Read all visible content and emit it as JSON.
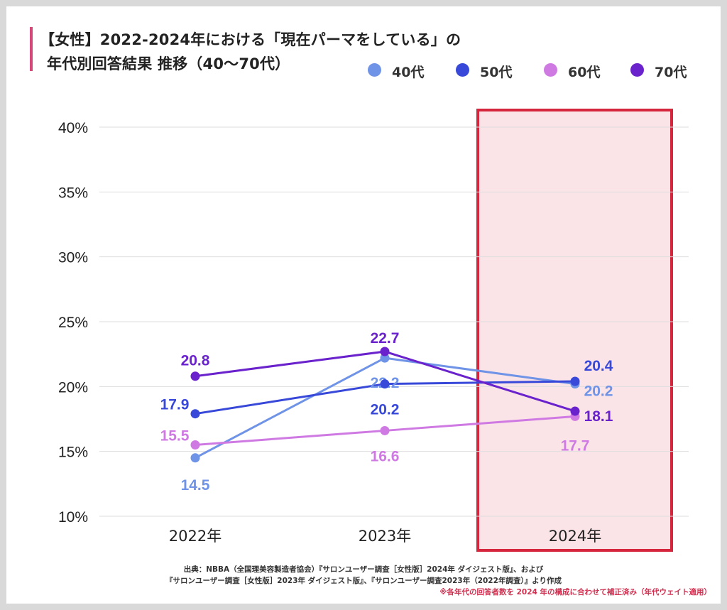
{
  "title": {
    "line1": "【女性】2022-2024年における「現在パーマをしている」の",
    "line2": "年代別回答結果 推移（40～70代）"
  },
  "chart_data": {
    "type": "line",
    "categories": [
      "2022年",
      "2023年",
      "2024年"
    ],
    "series": [
      {
        "name": "40代",
        "color": "#6f93e6",
        "values": [
          14.5,
          22.2,
          20.2
        ]
      },
      {
        "name": "50代",
        "color": "#3848d8",
        "values": [
          17.9,
          20.2,
          20.4
        ]
      },
      {
        "name": "60代",
        "color": "#cf7ae3",
        "values": [
          15.5,
          16.6,
          17.7
        ]
      },
      {
        "name": "70代",
        "color": "#6a22cc",
        "values": [
          20.8,
          22.7,
          18.1
        ]
      }
    ],
    "y_ticks": [
      "10%",
      "15%",
      "20%",
      "25%",
      "30%",
      "35%",
      "40%"
    ],
    "ylim": [
      10,
      40
    ],
    "grid": true,
    "legend_position": "top-right",
    "highlight_category": "2024年",
    "highlight_color": "#d6263e"
  },
  "source": {
    "line1": "出典：NBBA（全国理美容製造者協会）『サロンユーザー調査［女性版］2024年 ダイジェスト版』、および",
    "line2": "『サロンユーザー調査［女性版］2023年 ダイジェスト版』、『サロンユーザー調査2023年（2022年調査）』より作成"
  },
  "note": "※各年代の回答者数を 2024 年の構成に合わせて補正済み（年代ウェイト適用）"
}
